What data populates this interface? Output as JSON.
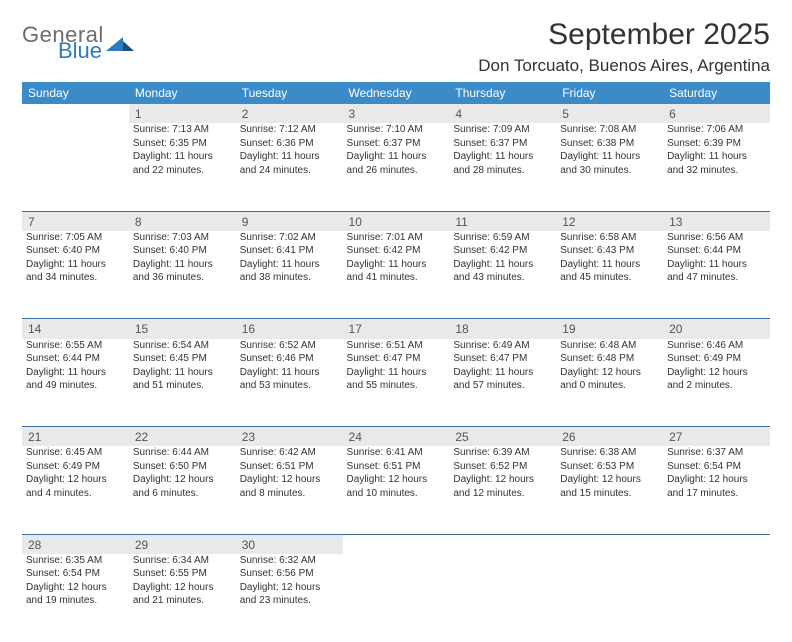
{
  "logo": {
    "general": "General",
    "blue": "Blue"
  },
  "title": "September 2025",
  "location": "Don Torcuato, Buenos Aires, Argentina",
  "weekday_labels": [
    "Sunday",
    "Monday",
    "Tuesday",
    "Wednesday",
    "Thursday",
    "Friday",
    "Saturday"
  ],
  "header_bg": "#3b8bc8",
  "daynum_bg": "#e9e9e9",
  "rule_color": "#3b6fa0",
  "text_color": "#333333",
  "days": {
    "1": {
      "sunrise": "7:13 AM",
      "sunset": "6:35 PM",
      "daylight": "11 hours and 22 minutes."
    },
    "2": {
      "sunrise": "7:12 AM",
      "sunset": "6:36 PM",
      "daylight": "11 hours and 24 minutes."
    },
    "3": {
      "sunrise": "7:10 AM",
      "sunset": "6:37 PM",
      "daylight": "11 hours and 26 minutes."
    },
    "4": {
      "sunrise": "7:09 AM",
      "sunset": "6:37 PM",
      "daylight": "11 hours and 28 minutes."
    },
    "5": {
      "sunrise": "7:08 AM",
      "sunset": "6:38 PM",
      "daylight": "11 hours and 30 minutes."
    },
    "6": {
      "sunrise": "7:06 AM",
      "sunset": "6:39 PM",
      "daylight": "11 hours and 32 minutes."
    },
    "7": {
      "sunrise": "7:05 AM",
      "sunset": "6:40 PM",
      "daylight": "11 hours and 34 minutes."
    },
    "8": {
      "sunrise": "7:03 AM",
      "sunset": "6:40 PM",
      "daylight": "11 hours and 36 minutes."
    },
    "9": {
      "sunrise": "7:02 AM",
      "sunset": "6:41 PM",
      "daylight": "11 hours and 38 minutes."
    },
    "10": {
      "sunrise": "7:01 AM",
      "sunset": "6:42 PM",
      "daylight": "11 hours and 41 minutes."
    },
    "11": {
      "sunrise": "6:59 AM",
      "sunset": "6:42 PM",
      "daylight": "11 hours and 43 minutes."
    },
    "12": {
      "sunrise": "6:58 AM",
      "sunset": "6:43 PM",
      "daylight": "11 hours and 45 minutes."
    },
    "13": {
      "sunrise": "6:56 AM",
      "sunset": "6:44 PM",
      "daylight": "11 hours and 47 minutes."
    },
    "14": {
      "sunrise": "6:55 AM",
      "sunset": "6:44 PM",
      "daylight": "11 hours and 49 minutes."
    },
    "15": {
      "sunrise": "6:54 AM",
      "sunset": "6:45 PM",
      "daylight": "11 hours and 51 minutes."
    },
    "16": {
      "sunrise": "6:52 AM",
      "sunset": "6:46 PM",
      "daylight": "11 hours and 53 minutes."
    },
    "17": {
      "sunrise": "6:51 AM",
      "sunset": "6:47 PM",
      "daylight": "11 hours and 55 minutes."
    },
    "18": {
      "sunrise": "6:49 AM",
      "sunset": "6:47 PM",
      "daylight": "11 hours and 57 minutes."
    },
    "19": {
      "sunrise": "6:48 AM",
      "sunset": "6:48 PM",
      "daylight": "12 hours and 0 minutes."
    },
    "20": {
      "sunrise": "6:46 AM",
      "sunset": "6:49 PM",
      "daylight": "12 hours and 2 minutes."
    },
    "21": {
      "sunrise": "6:45 AM",
      "sunset": "6:49 PM",
      "daylight": "12 hours and 4 minutes."
    },
    "22": {
      "sunrise": "6:44 AM",
      "sunset": "6:50 PM",
      "daylight": "12 hours and 6 minutes."
    },
    "23": {
      "sunrise": "6:42 AM",
      "sunset": "6:51 PM",
      "daylight": "12 hours and 8 minutes."
    },
    "24": {
      "sunrise": "6:41 AM",
      "sunset": "6:51 PM",
      "daylight": "12 hours and 10 minutes."
    },
    "25": {
      "sunrise": "6:39 AM",
      "sunset": "6:52 PM",
      "daylight": "12 hours and 12 minutes."
    },
    "26": {
      "sunrise": "6:38 AM",
      "sunset": "6:53 PM",
      "daylight": "12 hours and 15 minutes."
    },
    "27": {
      "sunrise": "6:37 AM",
      "sunset": "6:54 PM",
      "daylight": "12 hours and 17 minutes."
    },
    "28": {
      "sunrise": "6:35 AM",
      "sunset": "6:54 PM",
      "daylight": "12 hours and 19 minutes."
    },
    "29": {
      "sunrise": "6:34 AM",
      "sunset": "6:55 PM",
      "daylight": "12 hours and 21 minutes."
    },
    "30": {
      "sunrise": "6:32 AM",
      "sunset": "6:56 PM",
      "daylight": "12 hours and 23 minutes."
    }
  },
  "labels": {
    "sunrise": "Sunrise: ",
    "sunset": "Sunset: ",
    "daylight": "Daylight: "
  },
  "weeks": [
    [
      null,
      1,
      2,
      3,
      4,
      5,
      6
    ],
    [
      7,
      8,
      9,
      10,
      11,
      12,
      13
    ],
    [
      14,
      15,
      16,
      17,
      18,
      19,
      20
    ],
    [
      21,
      22,
      23,
      24,
      25,
      26,
      27
    ],
    [
      28,
      29,
      30,
      null,
      null,
      null,
      null
    ]
  ]
}
